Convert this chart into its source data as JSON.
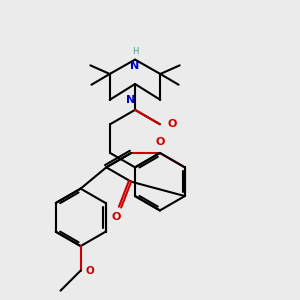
{
  "bg_color": "#ebebeb",
  "bond_color": "#000000",
  "o_color": "#cc0000",
  "n_color": "#0000cc",
  "nh_color": "#4a9a8a",
  "bond_width": 1.5,
  "figsize": [
    3.0,
    3.0
  ],
  "dpi": 100,
  "xlim": [
    0,
    3
  ],
  "ylim": [
    0,
    3
  ]
}
